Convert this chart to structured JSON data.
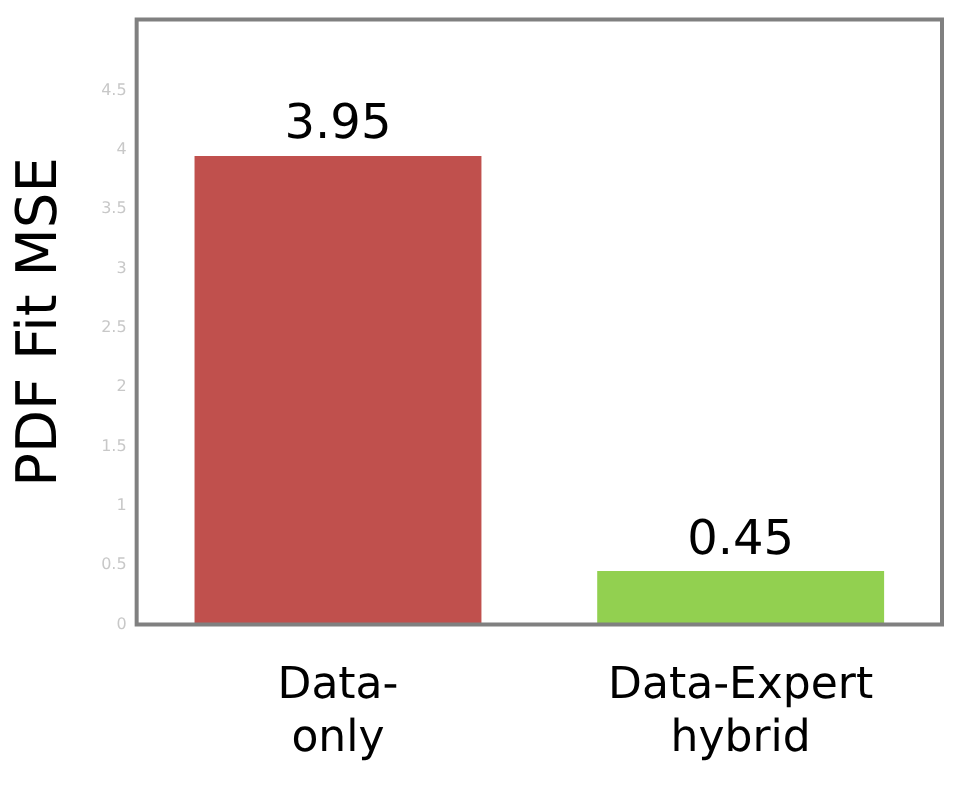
{
  "chart_data": {
    "type": "bar",
    "ylabel": "PDF Fit MSE",
    "categories": [
      "Data-only",
      "Data-Expert hybrid"
    ],
    "values": [
      3.95,
      0.45
    ],
    "colors": [
      "#c0504d",
      "#92d050"
    ],
    "ylim": [
      0,
      5.1
    ],
    "yticks": [
      0,
      0.5,
      1,
      1.5,
      2,
      2.5,
      3,
      3.5,
      4,
      4.5
    ],
    "grid": false,
    "legend": false,
    "data_labels": true
  }
}
